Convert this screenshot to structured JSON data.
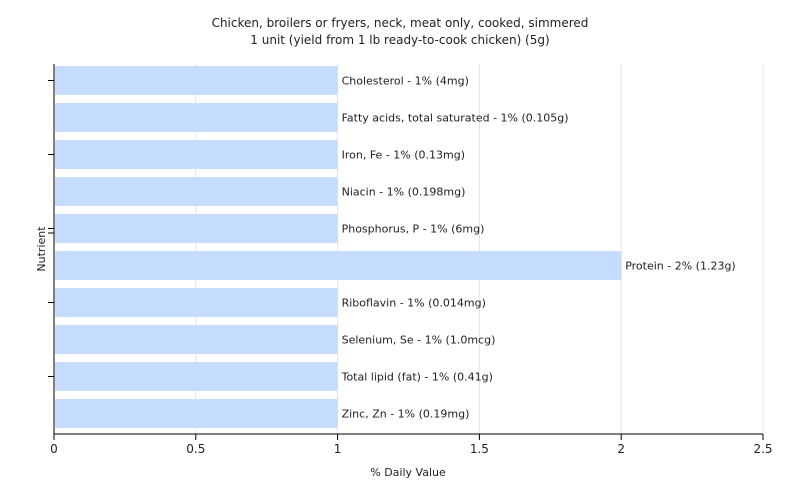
{
  "chart_data": {
    "type": "bar",
    "orientation": "horizontal",
    "title": "Chicken, broilers or fryers, neck, meat only, cooked, simmered",
    "subtitle": "1 unit (yield from 1 lb ready-to-cook chicken) (5g)",
    "xlabel": "% Daily Value",
    "ylabel": "Nutrient",
    "xlim": [
      0,
      2.5
    ],
    "xticks": [
      "0",
      "0.5",
      "1",
      "1.5",
      "2",
      "2.5"
    ],
    "xtick_values": [
      0,
      0.5,
      1,
      1.5,
      2,
      2.5
    ],
    "grid": true,
    "bar_color": "#c6dcff",
    "categories": [
      "Cholesterol",
      "Fatty acids, total saturated",
      "Iron, Fe",
      "Niacin",
      "Phosphorus, P",
      "Protein",
      "Riboflavin",
      "Selenium, Se",
      "Total lipid (fat)",
      "Zinc, Zn"
    ],
    "values": [
      1,
      1,
      1,
      1,
      1,
      2,
      1,
      1,
      1,
      1
    ],
    "labels": [
      "Cholesterol - 1% (4mg)",
      "Fatty acids, total saturated - 1% (0.105g)",
      "Iron, Fe - 1% (0.13mg)",
      "Niacin - 1% (0.198mg)",
      "Phosphorus, P - 1% (6mg)",
      "Protein - 2% (1.23g)",
      "Riboflavin - 1% (0.014mg)",
      "Selenium, Se - 1% (1.0mcg)",
      "Total lipid (fat) - 1% (0.41g)",
      "Zinc, Zn - 1% (0.19mg)"
    ]
  }
}
